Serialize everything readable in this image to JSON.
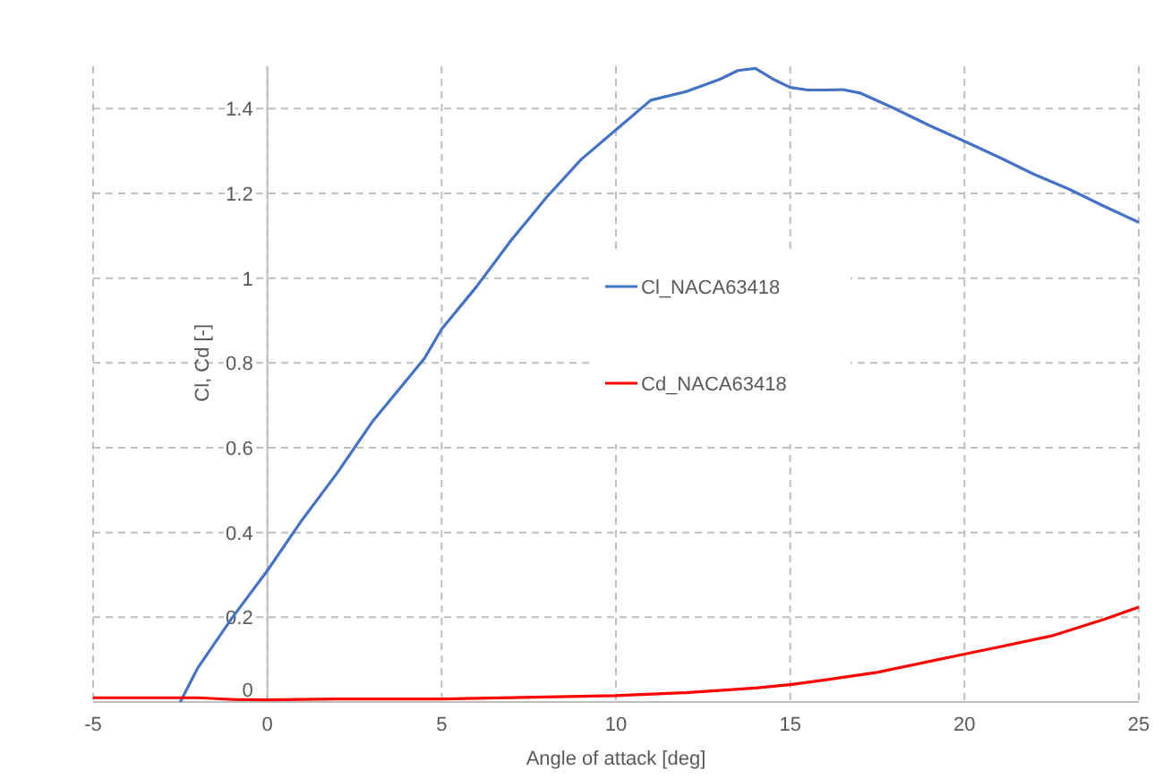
{
  "chart_data": {
    "type": "line",
    "xlabel": "Angle of attack [deg]",
    "ylabel": "Cl, Cd [-]",
    "xlim": [
      -5,
      25
    ],
    "xticks": [
      -5,
      0,
      5,
      10,
      15,
      20,
      25
    ],
    "ylim": [
      0,
      1.5
    ],
    "yticks": [
      0,
      0.2,
      0.4,
      0.6,
      0.8,
      1,
      1.2,
      1.4
    ],
    "grid": true,
    "legend": "center",
    "marker": "none",
    "line_style": "solid",
    "series": [
      {
        "name": "Cl_NACA63418",
        "color": "#4472c4",
        "x": [
          -2.5,
          -2,
          -1,
          0,
          1,
          2,
          3,
          4,
          4.5,
          5,
          6,
          7,
          7.5,
          8,
          9,
          10,
          11,
          12,
          13,
          13.5,
          14,
          14.5,
          15,
          15.5,
          16,
          16.5,
          17,
          18,
          19,
          20,
          21,
          22,
          23,
          24,
          25
        ],
        "values": [
          0,
          0.08,
          0.2,
          0.31,
          0.43,
          0.54,
          0.66,
          0.76,
          0.81,
          0.88,
          0.98,
          1.09,
          1.14,
          1.19,
          1.28,
          1.35,
          1.42,
          1.44,
          1.47,
          1.49,
          1.495,
          1.47,
          1.45,
          1.444,
          1.444,
          1.445,
          1.437,
          1.4,
          1.36,
          1.323,
          1.285,
          1.245,
          1.21,
          1.17,
          1.132
        ]
      },
      {
        "name": "Cd_NACA63418",
        "color": "#ff0000",
        "x": [
          -5,
          -2,
          -1,
          0,
          2,
          5,
          8,
          10,
          12,
          14,
          15,
          16,
          17.5,
          19,
          20,
          21,
          22.5,
          24,
          25
        ],
        "values": [
          0.01,
          0.01,
          0.006,
          0.005,
          0.007,
          0.007,
          0.012,
          0.015,
          0.022,
          0.033,
          0.041,
          0.052,
          0.07,
          0.096,
          0.113,
          0.13,
          0.156,
          0.195,
          0.224
        ]
      }
    ]
  }
}
